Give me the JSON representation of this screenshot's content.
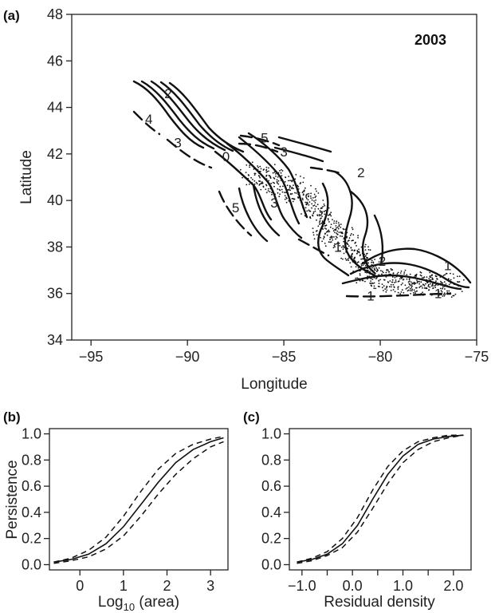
{
  "chart_data": [
    {
      "panel": "(a)",
      "type": "scatter",
      "title": "2003",
      "xlabel": "Longitude",
      "ylabel": "Latitude",
      "xlim": [
        -96,
        -75
      ],
      "ylim": [
        34,
        48
      ],
      "x_ticks": [
        -95,
        -90,
        -85,
        -80,
        -75
      ],
      "y_ticks": [
        34,
        36,
        38,
        40,
        42,
        44,
        46,
        48
      ],
      "x_tick_labels": [
        "−95",
        "−90",
        "−85",
        "−80",
        "−75"
      ],
      "y_tick_labels": [
        "34",
        "36",
        "38",
        "40",
        "42",
        "44",
        "46",
        "48"
      ],
      "contour_labels": [
        {
          "text": "2",
          "lon": -91.0,
          "lat": 44.6
        },
        {
          "text": "4",
          "lon": -92.0,
          "lat": 43.5
        },
        {
          "text": "3",
          "lon": -90.5,
          "lat": 42.5
        },
        {
          "text": "0",
          "lon": -88.0,
          "lat": 41.9
        },
        {
          "text": "5",
          "lon": -86.0,
          "lat": 42.7
        },
        {
          "text": "3",
          "lon": -85.0,
          "lat": 42.1
        },
        {
          "text": "2",
          "lon": -81.0,
          "lat": 41.2
        },
        {
          "text": "5",
          "lon": -87.5,
          "lat": 39.7
        },
        {
          "text": "3",
          "lon": -85.5,
          "lat": 39.9
        },
        {
          "text": "1",
          "lon": -82.2,
          "lat": 38.0
        },
        {
          "text": "2",
          "lon": -79.9,
          "lat": 37.4
        },
        {
          "text": "1",
          "lon": -76.5,
          "lat": 37.2
        },
        {
          "text": "1",
          "lon": -80.5,
          "lat": 35.9
        },
        {
          "text": "1",
          "lon": -77.0,
          "lat": 36.0
        }
      ],
      "grid": false,
      "grid_note": "Contour lines of residual density over point locations (stipple)"
    },
    {
      "panel": "(b)",
      "type": "line",
      "xlabel": "Log",
      "xlabel_sub": "10",
      "xlabel_rest": " (area)",
      "ylabel": "Persistence",
      "xlim": [
        -0.7,
        3.4
      ],
      "ylim": [
        -0.04,
        1.04
      ],
      "x_ticks": [
        0,
        1,
        2,
        3
      ],
      "x_tick_labels": [
        "0",
        "1",
        "2",
        "3"
      ],
      "y_ticks": [
        0.0,
        0.2,
        0.4,
        0.6,
        0.8,
        1.0
      ],
      "y_tick_labels": [
        "0.0",
        "0.2",
        "0.4",
        "0.6",
        "0.8",
        "1.0"
      ],
      "x": [
        -0.6,
        -0.2,
        0.2,
        0.6,
        1.0,
        1.4,
        1.8,
        2.2,
        2.6,
        3.0,
        3.3
      ],
      "series": [
        {
          "values": [
            0.02,
            0.04,
            0.08,
            0.16,
            0.29,
            0.46,
            0.63,
            0.78,
            0.88,
            0.94,
            0.97
          ]
        },
        {
          "values": [
            0.02,
            0.05,
            0.11,
            0.21,
            0.37,
            0.56,
            0.73,
            0.85,
            0.92,
            0.96,
            0.98
          ]
        },
        {
          "values": [
            0.01,
            0.03,
            0.06,
            0.12,
            0.22,
            0.37,
            0.54,
            0.69,
            0.81,
            0.9,
            0.94
          ]
        }
      ],
      "series_styles": [
        "solid",
        "dashed",
        "dashed"
      ]
    },
    {
      "panel": "(c)",
      "type": "line",
      "xlabel": "Residual density",
      "ylabel": "",
      "xlim": [
        -1.25,
        2.35
      ],
      "ylim": [
        -0.04,
        1.04
      ],
      "x_ticks": [
        -1.0,
        -0.5,
        0.0,
        0.5,
        1.0,
        1.5,
        2.0
      ],
      "x_tick_labels": [
        "−1.0",
        "",
        "0.0",
        "",
        "1.0",
        "",
        "2.0"
      ],
      "y_ticks": [
        0.0,
        0.2,
        0.4,
        0.6,
        0.8,
        1.0
      ],
      "y_tick_labels": [
        "0.0",
        "0.2",
        "0.4",
        "0.6",
        "0.8",
        "1.0"
      ],
      "x": [
        -1.1,
        -0.8,
        -0.5,
        -0.2,
        0.1,
        0.4,
        0.7,
        1.0,
        1.3,
        1.6,
        1.9,
        2.2
      ],
      "series": [
        {
          "values": [
            0.02,
            0.04,
            0.08,
            0.16,
            0.3,
            0.5,
            0.69,
            0.83,
            0.92,
            0.96,
            0.98,
            0.99
          ]
        },
        {
          "values": [
            0.02,
            0.05,
            0.1,
            0.2,
            0.36,
            0.57,
            0.75,
            0.87,
            0.94,
            0.97,
            0.99,
            0.99
          ]
        },
        {
          "values": [
            0.01,
            0.03,
            0.07,
            0.13,
            0.25,
            0.43,
            0.62,
            0.78,
            0.88,
            0.94,
            0.97,
            0.99
          ]
        }
      ],
      "series_styles": [
        "solid",
        "dashed",
        "dashed"
      ]
    }
  ],
  "labels": {
    "panel_a": "(a)",
    "panel_b": "(b)",
    "panel_c": "(c)"
  }
}
